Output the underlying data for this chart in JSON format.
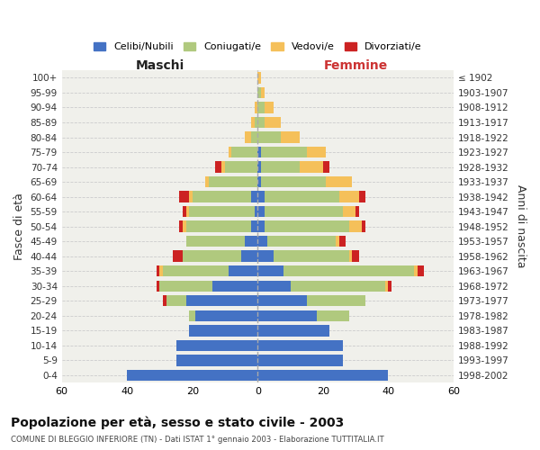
{
  "age_groups": [
    "0-4",
    "5-9",
    "10-14",
    "15-19",
    "20-24",
    "25-29",
    "30-34",
    "35-39",
    "40-44",
    "45-49",
    "50-54",
    "55-59",
    "60-64",
    "65-69",
    "70-74",
    "75-79",
    "80-84",
    "85-89",
    "90-94",
    "95-99",
    "100+"
  ],
  "birth_years": [
    "1998-2002",
    "1993-1997",
    "1988-1992",
    "1983-1987",
    "1978-1982",
    "1973-1977",
    "1968-1972",
    "1963-1967",
    "1958-1962",
    "1953-1957",
    "1948-1952",
    "1943-1947",
    "1938-1942",
    "1933-1937",
    "1928-1932",
    "1923-1927",
    "1918-1922",
    "1913-1917",
    "1908-1912",
    "1903-1907",
    "≤ 1902"
  ],
  "males": {
    "celibe": [
      40,
      25,
      25,
      21,
      19,
      22,
      14,
      9,
      5,
      4,
      2,
      1,
      2,
      0,
      0,
      0,
      0,
      0,
      0,
      0,
      0
    ],
    "coniugato": [
      0,
      0,
      0,
      0,
      2,
      6,
      16,
      20,
      18,
      18,
      20,
      20,
      18,
      15,
      10,
      8,
      2,
      1,
      0,
      0,
      0
    ],
    "vedovo": [
      0,
      0,
      0,
      0,
      0,
      0,
      0,
      1,
      0,
      0,
      1,
      1,
      1,
      1,
      1,
      1,
      2,
      1,
      1,
      0,
      0
    ],
    "divorziato": [
      0,
      0,
      0,
      0,
      0,
      1,
      1,
      1,
      3,
      0,
      1,
      1,
      3,
      0,
      2,
      0,
      0,
      0,
      0,
      0,
      0
    ]
  },
  "females": {
    "nubile": [
      40,
      26,
      26,
      22,
      18,
      15,
      10,
      8,
      5,
      3,
      2,
      2,
      2,
      1,
      1,
      1,
      0,
      0,
      0,
      0,
      0
    ],
    "coniugata": [
      0,
      0,
      0,
      0,
      10,
      18,
      29,
      40,
      23,
      21,
      26,
      24,
      23,
      20,
      12,
      14,
      7,
      2,
      2,
      1,
      0
    ],
    "vedova": [
      0,
      0,
      0,
      0,
      0,
      0,
      1,
      1,
      1,
      1,
      4,
      4,
      6,
      8,
      7,
      6,
      6,
      5,
      3,
      1,
      1
    ],
    "divorziata": [
      0,
      0,
      0,
      0,
      0,
      0,
      1,
      2,
      2,
      2,
      1,
      1,
      2,
      0,
      2,
      0,
      0,
      0,
      0,
      0,
      0
    ]
  },
  "colors": {
    "celibe": "#4472c4",
    "coniugato": "#b0c97e",
    "vedovo": "#f5c05a",
    "divorziato": "#cc2222"
  },
  "xlim": 60,
  "title": "Popolazione per età, sesso e stato civile - 2003",
  "subtitle": "COMUNE DI BLEGGIO INFERIORE (TN) - Dati ISTAT 1° gennaio 2003 - Elaborazione TUTTITALIA.IT",
  "xlabel_left": "Maschi",
  "xlabel_right": "Femmine",
  "ylabel_left": "Fasce di età",
  "ylabel_right": "Anni di nascita",
  "legend_labels": [
    "Celibi/Nubili",
    "Coniugati/e",
    "Vedovi/e",
    "Divorziati/e"
  ],
  "background_color": "#ffffff",
  "plot_bg_color": "#f0f0eb",
  "grid_color": "#cccccc"
}
